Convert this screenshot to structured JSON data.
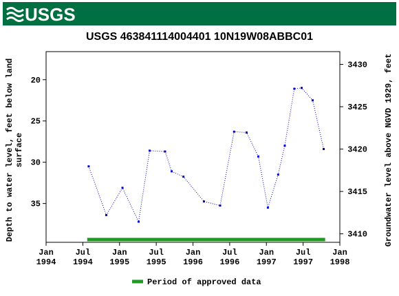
{
  "header": {
    "logo": "USGS"
  },
  "chart_data": {
    "type": "line",
    "title": "USGS 463841114004401 10N19W08ABBC01",
    "y_label": "Depth to water level, feet below land surface",
    "y2_label": "Groundwater level above NGVD 1929, feet",
    "xlim": [
      1994.0,
      1998.0
    ],
    "xticks": [
      {
        "value": 1994.0,
        "label": "Jan 1994"
      },
      {
        "value": 1994.5,
        "label": "Jul 1994"
      },
      {
        "value": 1995.0,
        "label": "Jan 1995"
      },
      {
        "value": 1995.5,
        "label": "Jul 1995"
      },
      {
        "value": 1996.0,
        "label": "Jan 1996"
      },
      {
        "value": 1996.5,
        "label": "Jul 1996"
      },
      {
        "value": 1997.0,
        "label": "Jan 1997"
      },
      {
        "value": 1997.5,
        "label": "Jul 1997"
      },
      {
        "value": 1998.0,
        "label": "Jan 1998"
      }
    ],
    "ylim": [
      16.6,
      39.7
    ],
    "y_inverted": true,
    "yticks": [
      20,
      25,
      30,
      35
    ],
    "y2lim": [
      3409.0,
      3431.5
    ],
    "y2ticks": [
      3410,
      3415,
      3420,
      3425,
      3430
    ],
    "series": [
      {
        "name": "Depth to water level",
        "color": "#0000cc",
        "x": [
          1994.58,
          1994.82,
          1995.04,
          1995.26,
          1995.41,
          1995.62,
          1995.71,
          1995.87,
          1996.15,
          1996.37,
          1996.56,
          1996.73,
          1996.89,
          1997.02,
          1997.16,
          1997.25,
          1997.38,
          1997.48,
          1997.63,
          1997.78
        ],
        "values": [
          30.5,
          36.4,
          33.1,
          37.2,
          28.6,
          28.7,
          31.1,
          31.75,
          34.75,
          35.25,
          26.3,
          26.4,
          29.3,
          35.5,
          31.5,
          28.0,
          21.1,
          21.0,
          22.5,
          28.4
        ]
      }
    ],
    "approved_period": {
      "name": "Period of approved data",
      "color": "#229922",
      "x": [
        1994.56,
        1997.8
      ]
    }
  }
}
